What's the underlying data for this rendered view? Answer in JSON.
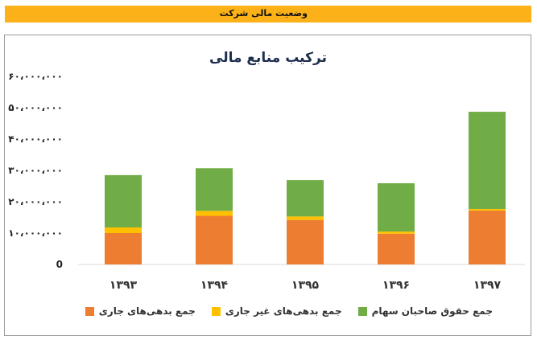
{
  "header": {
    "title": "وضعیت مالی شرکت"
  },
  "colors": {
    "banner": "#fbb117",
    "current_liabilities": "#ed7d31",
    "non_current_liabilities": "#ffc000",
    "equity": "#70ad47",
    "title_text": "#1f2d4e"
  },
  "chart_data": {
    "type": "bar",
    "stacked": true,
    "title": "ترکیب منابع مالی",
    "xlabel": "",
    "ylabel": "",
    "categories": [
      "۱۳۹۳",
      "۱۳۹۴",
      "۱۳۹۵",
      "۱۳۹۶",
      "۱۳۹۷"
    ],
    "series": [
      {
        "name": "جمع بدهی‌های جاری",
        "color": "#ed7d31",
        "values": [
          10000000,
          15500000,
          14200000,
          9800000,
          17200000
        ]
      },
      {
        "name": "جمع بدهی‌های غیر جاری",
        "color": "#ffc000",
        "values": [
          1800000,
          1600000,
          1100000,
          700000,
          500000
        ]
      },
      {
        "name": "جمع حقوق صاحبان سهام",
        "color": "#70ad47",
        "values": [
          16700000,
          13600000,
          11600000,
          15400000,
          31000000
        ]
      }
    ],
    "ylim": [
      0,
      60000000
    ],
    "yticks": [
      0,
      10000000,
      20000000,
      30000000,
      40000000,
      50000000,
      60000000
    ],
    "ytick_labels": [
      "0",
      "۱۰،۰۰۰،۰۰۰",
      "۲۰،۰۰۰،۰۰۰",
      "۳۰،۰۰۰،۰۰۰",
      "۴۰،۰۰۰،۰۰۰",
      "۵۰،۰۰۰،۰۰۰",
      "۶۰،۰۰۰،۰۰۰"
    ],
    "grid": false,
    "legend_position": "bottom"
  }
}
